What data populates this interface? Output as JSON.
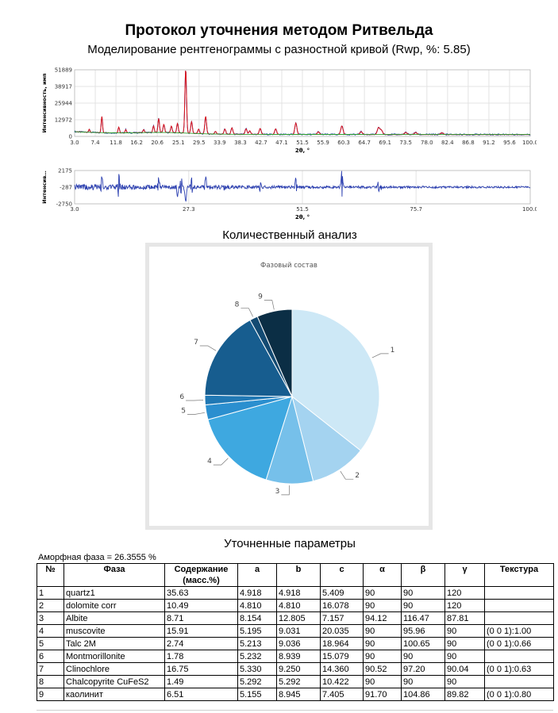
{
  "header": {
    "title": "Протокол уточнения методом Ритвельда",
    "subtitle": "Моделирование рентгенограммы с разностной кривой (Rwp, %: 5.85)"
  },
  "colors": {
    "observed": "#1f3fa8",
    "calculated": "#e0141a",
    "background": "#2e9e2e",
    "difference": "#2b3fb0",
    "pie": [
      "#cde8f6",
      "#a4d3f0",
      "#76c0ea",
      "#3ea8e0",
      "#2b8fcf",
      "#2078b4",
      "#175d8f",
      "#134a72",
      "#0b2e45"
    ]
  },
  "chart_data": [
    {
      "type": "line",
      "name": "xrd-pattern",
      "xlabel": "2θ, °",
      "ylabel": "Интенсивность, имп",
      "xlim": [
        3.0,
        100.0
      ],
      "ylim": [
        0,
        51889
      ],
      "x_ticks": [
        "3.0",
        "7.4",
        "11.8",
        "16.2",
        "20.6",
        "25.1",
        "29.5",
        "33.9",
        "38.3",
        "42.7",
        "47.1",
        "51.5",
        "55.9",
        "60.3",
        "64.7",
        "69.1",
        "73.5",
        "78.0",
        "82.4",
        "86.8",
        "91.2",
        "95.6",
        "100.0"
      ],
      "y_ticks": [
        "0",
        "12972",
        "25944",
        "38917",
        "51889"
      ],
      "grid": true,
      "peaks": [
        {
          "x": 6.1,
          "y": 4300
        },
        {
          "x": 8.8,
          "y": 14500
        },
        {
          "x": 12.4,
          "y": 6200
        },
        {
          "x": 13.9,
          "y": 4200
        },
        {
          "x": 17.7,
          "y": 4100
        },
        {
          "x": 19.8,
          "y": 6900
        },
        {
          "x": 20.9,
          "y": 12800
        },
        {
          "x": 22.0,
          "y": 8200
        },
        {
          "x": 23.6,
          "y": 6900
        },
        {
          "x": 24.9,
          "y": 9000
        },
        {
          "x": 26.65,
          "y": 51889
        },
        {
          "x": 27.9,
          "y": 10500
        },
        {
          "x": 29.4,
          "y": 4800
        },
        {
          "x": 30.9,
          "y": 14800
        },
        {
          "x": 33.0,
          "y": 3200
        },
        {
          "x": 35.0,
          "y": 5000
        },
        {
          "x": 36.5,
          "y": 6000
        },
        {
          "x": 39.5,
          "y": 5300
        },
        {
          "x": 40.3,
          "y": 3700
        },
        {
          "x": 42.5,
          "y": 5500
        },
        {
          "x": 45.8,
          "y": 5200
        },
        {
          "x": 50.1,
          "y": 9800
        },
        {
          "x": 54.9,
          "y": 3000
        },
        {
          "x": 59.9,
          "y": 7500
        },
        {
          "x": 64.0,
          "y": 3100
        },
        {
          "x": 67.7,
          "y": 6200
        },
        {
          "x": 68.3,
          "y": 4300
        },
        {
          "x": 73.5,
          "y": 2500
        },
        {
          "x": 75.6,
          "y": 2500
        },
        {
          "x": 81.2,
          "y": 2200
        }
      ]
    },
    {
      "type": "line",
      "name": "difference-curve",
      "xlabel": "2θ, °",
      "ylabel": "Интенсив…",
      "xlim": [
        3.0,
        100.0
      ],
      "ylim": [
        -2750,
        2175
      ],
      "x_ticks": [
        "3.0",
        "27.3",
        "51.5",
        "75.7",
        "100.0"
      ],
      "y_ticks": [
        "2175",
        "-287",
        "-2750"
      ],
      "grid": true,
      "spikes": [
        {
          "x": 8.8,
          "y": 1200
        },
        {
          "x": 12.4,
          "y": 1900
        },
        {
          "x": 20.9,
          "y": 900
        },
        {
          "x": 24.9,
          "y": -1500
        },
        {
          "x": 25.7,
          "y": 1300
        },
        {
          "x": 26.65,
          "y": -2500
        },
        {
          "x": 27.9,
          "y": 1100
        },
        {
          "x": 30.9,
          "y": 1200
        },
        {
          "x": 35.0,
          "y": -900
        },
        {
          "x": 42.5,
          "y": 600
        },
        {
          "x": 50.1,
          "y": 1000
        },
        {
          "x": 59.9,
          "y": 2100
        },
        {
          "x": 67.7,
          "y": 800
        },
        {
          "x": 68.3,
          "y": -700
        }
      ]
    },
    {
      "type": "pie",
      "name": "phase-composition",
      "title": "Фазовый состав",
      "categories": [
        "1",
        "2",
        "3",
        "4",
        "5",
        "6",
        "7",
        "8",
        "9"
      ],
      "values": [
        35.63,
        10.49,
        8.71,
        15.91,
        2.74,
        1.78,
        16.75,
        1.49,
        6.51
      ]
    }
  ],
  "sections": {
    "quant_title": "Количественный анализ",
    "params_title": "Уточненные параметры"
  },
  "amorphous": "Аморфная фаза = 26.3555 %",
  "table": {
    "headers": [
      "№",
      "Фаза",
      "Содержание (масс.%)",
      "a",
      "b",
      "c",
      "α",
      "β",
      "γ",
      "Текстура"
    ],
    "rows": [
      [
        "1",
        "quartz1",
        "35.63",
        "4.918",
        "4.918",
        "5.409",
        "90",
        "90",
        "120",
        ""
      ],
      [
        "2",
        "dolomite corr",
        "10.49",
        "4.810",
        "4.810",
        "16.078",
        "90",
        "90",
        "120",
        ""
      ],
      [
        "3",
        "Albite",
        "8.71",
        "8.154",
        "12.805",
        "7.157",
        "94.12",
        "116.47",
        "87.81",
        ""
      ],
      [
        "4",
        "muscovite",
        "15.91",
        "5.195",
        "9.031",
        "20.035",
        "90",
        "95.96",
        "90",
        "(0 0 1):1.00"
      ],
      [
        "5",
        "Talc 2M",
        "2.74",
        "5.213",
        "9.036",
        "18.964",
        "90",
        "100.65",
        "90",
        "(0 0 1):0.66"
      ],
      [
        "6",
        "Montmorillonite",
        "1.78",
        "5.232",
        "8.939",
        "15.079",
        "90",
        "90",
        "90",
        ""
      ],
      [
        "7",
        "Clinochlore",
        "16.75",
        "5.330",
        "9.250",
        "14.360",
        "90.52",
        "97.20",
        "90.04",
        "(0 0 1):0.63"
      ],
      [
        "8",
        "Chalcopyrite CuFeS2",
        "1.49",
        "5.292",
        "5.292",
        "10.422",
        "90",
        "90",
        "90",
        ""
      ],
      [
        "9",
        "каолинит",
        "6.51",
        "5.155",
        "8.945",
        "7.405",
        "91.70",
        "104.86",
        "89.82",
        "(0 0 1):0.80"
      ]
    ]
  }
}
